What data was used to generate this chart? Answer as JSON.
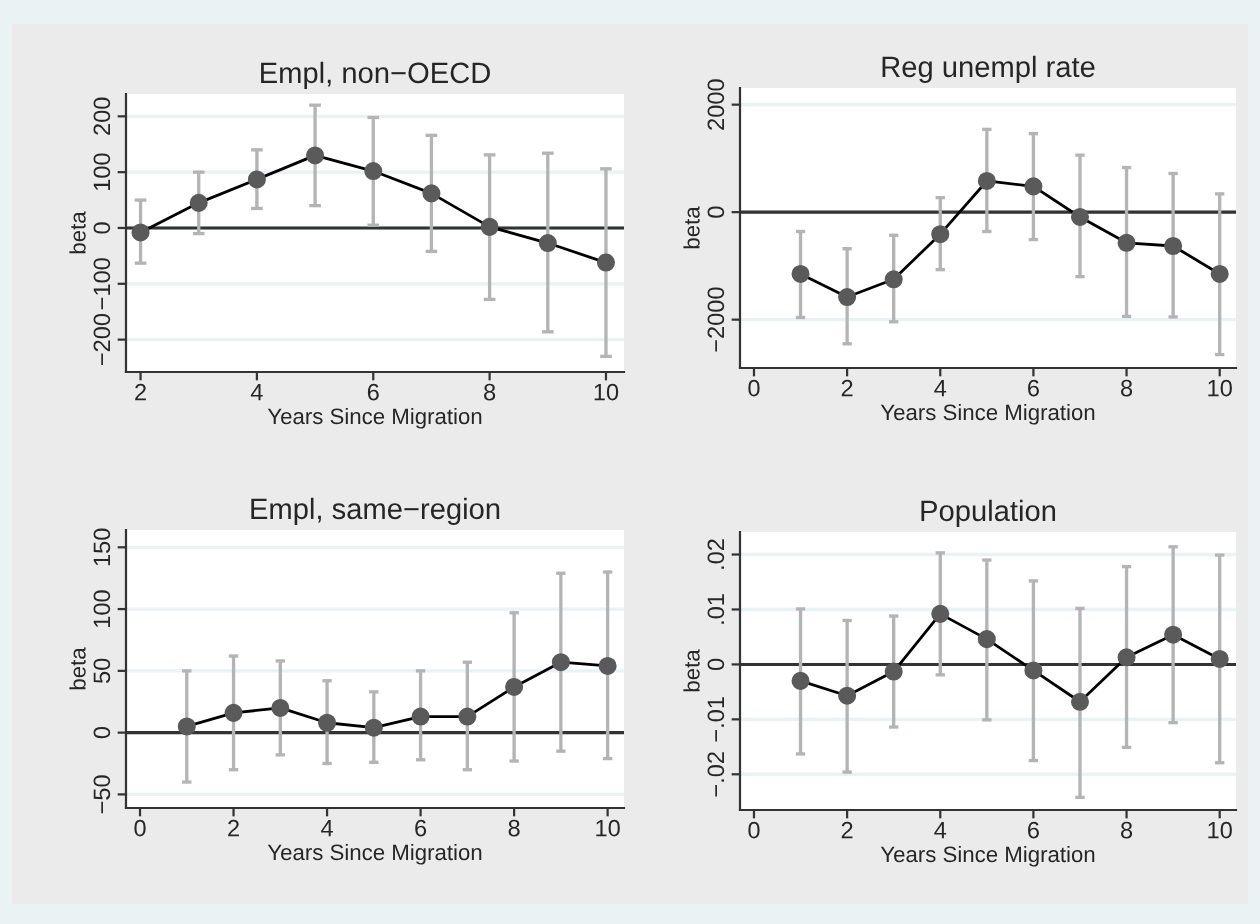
{
  "chart_data": [
    {
      "type": "line",
      "title": "Empl, non−OECD",
      "xlabel": "Years Since Migration",
      "ylabel": "beta",
      "x": [
        2,
        3,
        4,
        5,
        6,
        7,
        8,
        9,
        10
      ],
      "series": [
        {
          "color": "#5a5a5a",
          "values": [
            -8,
            45,
            87,
            130,
            102,
            62,
            2,
            -27,
            -62
          ],
          "errors": [
            [
              -63,
              50
            ],
            [
              -10,
              100
            ],
            [
              35,
              140
            ],
            [
              40,
              220
            ],
            [
              5,
              198
            ],
            [
              -42,
              166
            ],
            [
              -128,
              131
            ],
            [
              -186,
              134
            ],
            [
              -230,
              106
            ]
          ]
        }
      ],
      "xlim": [
        1.75,
        10.31
      ],
      "xticks": [
        2,
        4,
        6,
        8,
        10
      ],
      "ylim": [
        -258,
        240
      ],
      "yticks": [
        {
          "value": -200,
          "label": "−200"
        },
        {
          "value": -100,
          "label": "−100"
        },
        0,
        100,
        200
      ],
      "ref_lines": [
        {
          "axis": "y",
          "value": 0,
          "color": "#333333"
        }
      ],
      "grid": "y",
      "marker": "circle",
      "line_style": "solid"
    },
    {
      "type": "line",
      "title": "Reg unempl rate",
      "xlabel": "Years Since Migration",
      "ylabel": "beta",
      "x": [
        1,
        2,
        3,
        4,
        5,
        6,
        7,
        8,
        9,
        10
      ],
      "series": [
        {
          "color": "#5a5a5a",
          "values": [
            -1150,
            -1580,
            -1250,
            -410,
            580,
            480,
            -90,
            -570,
            -630,
            -1150
          ],
          "errors": [
            [
              -1960,
              -360
            ],
            [
              -2450,
              -680
            ],
            [
              -2040,
              -430
            ],
            [
              -1070,
              270
            ],
            [
              -360,
              1540
            ],
            [
              -510,
              1460
            ],
            [
              -1200,
              1060
            ],
            [
              -1940,
              830
            ],
            [
              -1950,
              720
            ],
            [
              -2650,
              340
            ]
          ]
        }
      ],
      "xlim": [
        -0.3,
        10.35
      ],
      "xticks": [
        0,
        2,
        4,
        6,
        8,
        10
      ],
      "ylim": [
        -2900,
        2310
      ],
      "yticks": [
        {
          "value": -2000,
          "label": "−2000"
        },
        0,
        2000
      ],
      "ref_lines": [
        {
          "axis": "y",
          "value": 0,
          "color": "#333333"
        }
      ],
      "grid": "y",
      "marker": "circle",
      "line_style": "solid"
    },
    {
      "type": "line",
      "title": "Empl, same−region",
      "xlabel": "Years Since Migration",
      "ylabel": "beta",
      "x": [
        1,
        2,
        3,
        4,
        5,
        6,
        7,
        8,
        9,
        10
      ],
      "series": [
        {
          "color": "#5a5a5a",
          "values": [
            5,
            16,
            20,
            8,
            4,
            13,
            13,
            37,
            57,
            54
          ],
          "errors": [
            [
              -40,
              50
            ],
            [
              -30,
              62
            ],
            [
              -18,
              58
            ],
            [
              -25,
              42
            ],
            [
              -24,
              33
            ],
            [
              -22,
              50
            ],
            [
              -30,
              57
            ],
            [
              -23,
              97
            ],
            [
              -15,
              129
            ],
            [
              -21,
              130
            ]
          ]
        }
      ],
      "xlim": [
        -0.3,
        10.35
      ],
      "xticks": [
        0,
        2,
        4,
        6,
        8,
        10
      ],
      "ylim": [
        -61,
        164
      ],
      "yticks": [
        {
          "value": -50,
          "label": "−50"
        },
        0,
        50,
        100,
        150
      ],
      "ref_lines": [
        {
          "axis": "y",
          "value": 0,
          "color": "#333333"
        }
      ],
      "grid": "y",
      "marker": "circle",
      "line_style": "solid"
    },
    {
      "type": "line",
      "title": "Population",
      "xlabel": "Years Since Migration",
      "ylabel": "beta",
      "x": [
        1,
        2,
        3,
        4,
        5,
        6,
        7,
        8,
        9,
        10
      ],
      "series": [
        {
          "color": "#5a5a5a",
          "values": [
            -0.003,
            -0.0057,
            -0.0013,
            0.0092,
            0.0046,
            -0.0011,
            -0.0068,
            0.0013,
            0.0054,
            0.001
          ],
          "errors": [
            [
              -0.0163,
              0.0101
            ],
            [
              -0.0196,
              0.008
            ],
            [
              -0.0114,
              0.0088
            ],
            [
              -0.0019,
              0.0203
            ],
            [
              -0.0101,
              0.019
            ],
            [
              -0.0175,
              0.0152
            ],
            [
              -0.0242,
              0.0102
            ],
            [
              -0.0151,
              0.0178
            ],
            [
              -0.0106,
              0.0214
            ],
            [
              -0.0179,
              0.0199
            ]
          ]
        }
      ],
      "xlim": [
        -0.3,
        10.35
      ],
      "xticks": [
        0,
        2,
        4,
        6,
        8,
        10
      ],
      "ylim": [
        -0.0265,
        0.0241
      ],
      "yticks": [
        {
          "value": -0.02,
          "label": "−.02"
        },
        {
          "value": -0.01,
          "label": "−.01"
        },
        {
          "value": 0,
          "label": "0"
        },
        {
          "value": 0.01,
          "label": ".01"
        },
        {
          "value": 0.02,
          "label": ".02"
        }
      ],
      "ref_lines": [
        {
          "axis": "y",
          "value": 0,
          "color": "#333333"
        }
      ],
      "grid": "y",
      "marker": "circle",
      "line_style": "solid"
    }
  ]
}
